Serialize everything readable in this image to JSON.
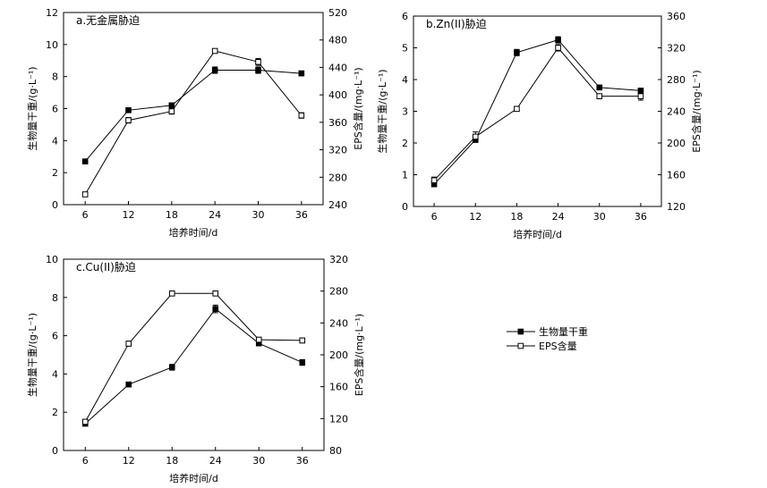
{
  "chart_data": [
    {
      "type": "line",
      "title": "a.无金属胁迫",
      "xlabel": "培养时间/d",
      "ylabel": "生物量干重/(g·L⁻¹)",
      "y2label": "EPS含量/(mg·L⁻¹)",
      "categories": [
        "6",
        "12",
        "18",
        "24",
        "30",
        "36"
      ],
      "ylim": [
        0,
        12
      ],
      "yticks": [
        "0",
        "2",
        "4",
        "6",
        "8",
        "10",
        "12"
      ],
      "y2lim": [
        240,
        520
      ],
      "y2ticks": [
        "240",
        "280",
        "320",
        "360",
        "400",
        "440",
        "480",
        "520"
      ],
      "series": [
        {
          "name": "生物量干重",
          "axis": "left",
          "marker": "filled",
          "values": [
            2.7,
            5.9,
            6.2,
            8.4,
            8.4,
            8.2
          ],
          "errors": [
            0.05,
            0.15,
            0.15,
            0.2,
            0.2,
            0.15
          ]
        },
        {
          "name": "EPS含量",
          "axis": "right",
          "marker": "open",
          "values": [
            255,
            363,
            376,
            464,
            448,
            370
          ],
          "errors": [
            3,
            4,
            4,
            3,
            5,
            4
          ]
        }
      ]
    },
    {
      "type": "line",
      "title": "b.Zn(II)胁迫",
      "xlabel": "培养时间/d",
      "ylabel": "生物量干重/(g·L⁻¹)",
      "y2label": "EPS含量/(mg·L⁻¹)",
      "categories": [
        "6",
        "12",
        "18",
        "24",
        "30",
        "36"
      ],
      "ylim": [
        0,
        6
      ],
      "yticks": [
        "0",
        "1",
        "2",
        "3",
        "4",
        "5",
        "6"
      ],
      "y2lim": [
        120,
        360
      ],
      "y2ticks": [
        "120",
        "160",
        "200",
        "240",
        "280",
        "320",
        "360"
      ],
      "series": [
        {
          "name": "生物量干重",
          "axis": "left",
          "marker": "filled",
          "values": [
            0.7,
            2.1,
            4.85,
            5.25,
            3.75,
            3.65
          ],
          "errors": [
            0.05,
            0.08,
            0.1,
            0.1,
            0.06,
            0.06
          ]
        },
        {
          "name": "EPS含量",
          "axis": "right",
          "marker": "open",
          "values": [
            153,
            208,
            243,
            320,
            259,
            259
          ],
          "errors": [
            4,
            6,
            3,
            4,
            3,
            5
          ]
        }
      ]
    },
    {
      "type": "line",
      "title": "c.Cu(II)胁迫",
      "xlabel": "培养时间/d",
      "ylabel": "生物量干重/(g·L⁻¹)",
      "y2label": "EPS含量/(mg·L⁻¹)",
      "categories": [
        "6",
        "12",
        "18",
        "24",
        "30",
        "36"
      ],
      "ylim": [
        0,
        10
      ],
      "yticks": [
        "0",
        "2",
        "4",
        "6",
        "8",
        "10"
      ],
      "y2lim": [
        80,
        320
      ],
      "y2ticks": [
        "80",
        "120",
        "160",
        "200",
        "240",
        "280",
        "320"
      ],
      "series": [
        {
          "name": "生物量干重",
          "axis": "left",
          "marker": "filled",
          "values": [
            1.4,
            3.45,
            4.35,
            7.4,
            5.6,
            4.6
          ],
          "errors": [
            0.08,
            0.08,
            0.15,
            0.2,
            0.12,
            0.15
          ]
        },
        {
          "name": "EPS含量",
          "axis": "right",
          "marker": "open",
          "values": [
            116,
            214,
            277,
            277,
            219,
            218
          ],
          "errors": [
            3,
            3,
            3,
            3,
            3,
            3
          ]
        }
      ]
    }
  ],
  "legend": {
    "items": [
      {
        "label": "生物量干重",
        "marker": "filled"
      },
      {
        "label": "EPS含量",
        "marker": "open"
      }
    ]
  }
}
